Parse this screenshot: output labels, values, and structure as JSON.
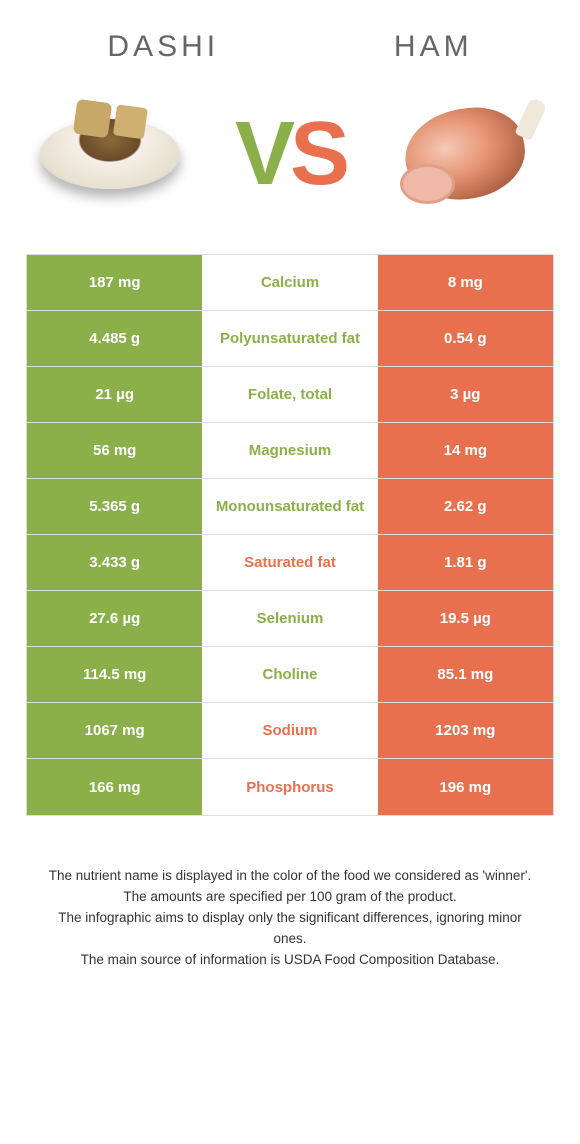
{
  "colors": {
    "green": "#8bb04a",
    "orange": "#e8704f",
    "white": "#ffffff",
    "row_border": "#dddddd",
    "text_dark": "#333333",
    "header_text": "#666666"
  },
  "header": {
    "left": "Dashi",
    "right": "Ham"
  },
  "vs": {
    "v": "V",
    "s": "S"
  },
  "table": {
    "type": "comparison-table",
    "rows": [
      {
        "left": "187 mg",
        "mid": "Calcium",
        "right": "8 mg",
        "winner": "left"
      },
      {
        "left": "4.485 g",
        "mid": "Polyunsaturated fat",
        "right": "0.54 g",
        "winner": "left"
      },
      {
        "left": "21 µg",
        "mid": "Folate, total",
        "right": "3 µg",
        "winner": "left"
      },
      {
        "left": "56 mg",
        "mid": "Magnesium",
        "right": "14 mg",
        "winner": "left"
      },
      {
        "left": "5.365 g",
        "mid": "Monounsaturated fat",
        "right": "2.62 g",
        "winner": "left"
      },
      {
        "left": "3.433 g",
        "mid": "Saturated fat",
        "right": "1.81 g",
        "winner": "right"
      },
      {
        "left": "27.6 µg",
        "mid": "Selenium",
        "right": "19.5 µg",
        "winner": "left"
      },
      {
        "left": "114.5 mg",
        "mid": "Choline",
        "right": "85.1 mg",
        "winner": "left"
      },
      {
        "left": "1067 mg",
        "mid": "Sodium",
        "right": "1203 mg",
        "winner": "right"
      },
      {
        "left": "166 mg",
        "mid": "Phosphorus",
        "right": "196 mg",
        "winner": "right"
      }
    ]
  },
  "footer": {
    "line1": "The nutrient name is displayed in the color of the food we considered as 'winner'.",
    "line2": "The amounts are specified per 100 gram of the product.",
    "line3": "The infographic aims to display only the significant differences, ignoring minor ones.",
    "line4": "The main source of information is USDA Food Composition Database."
  }
}
